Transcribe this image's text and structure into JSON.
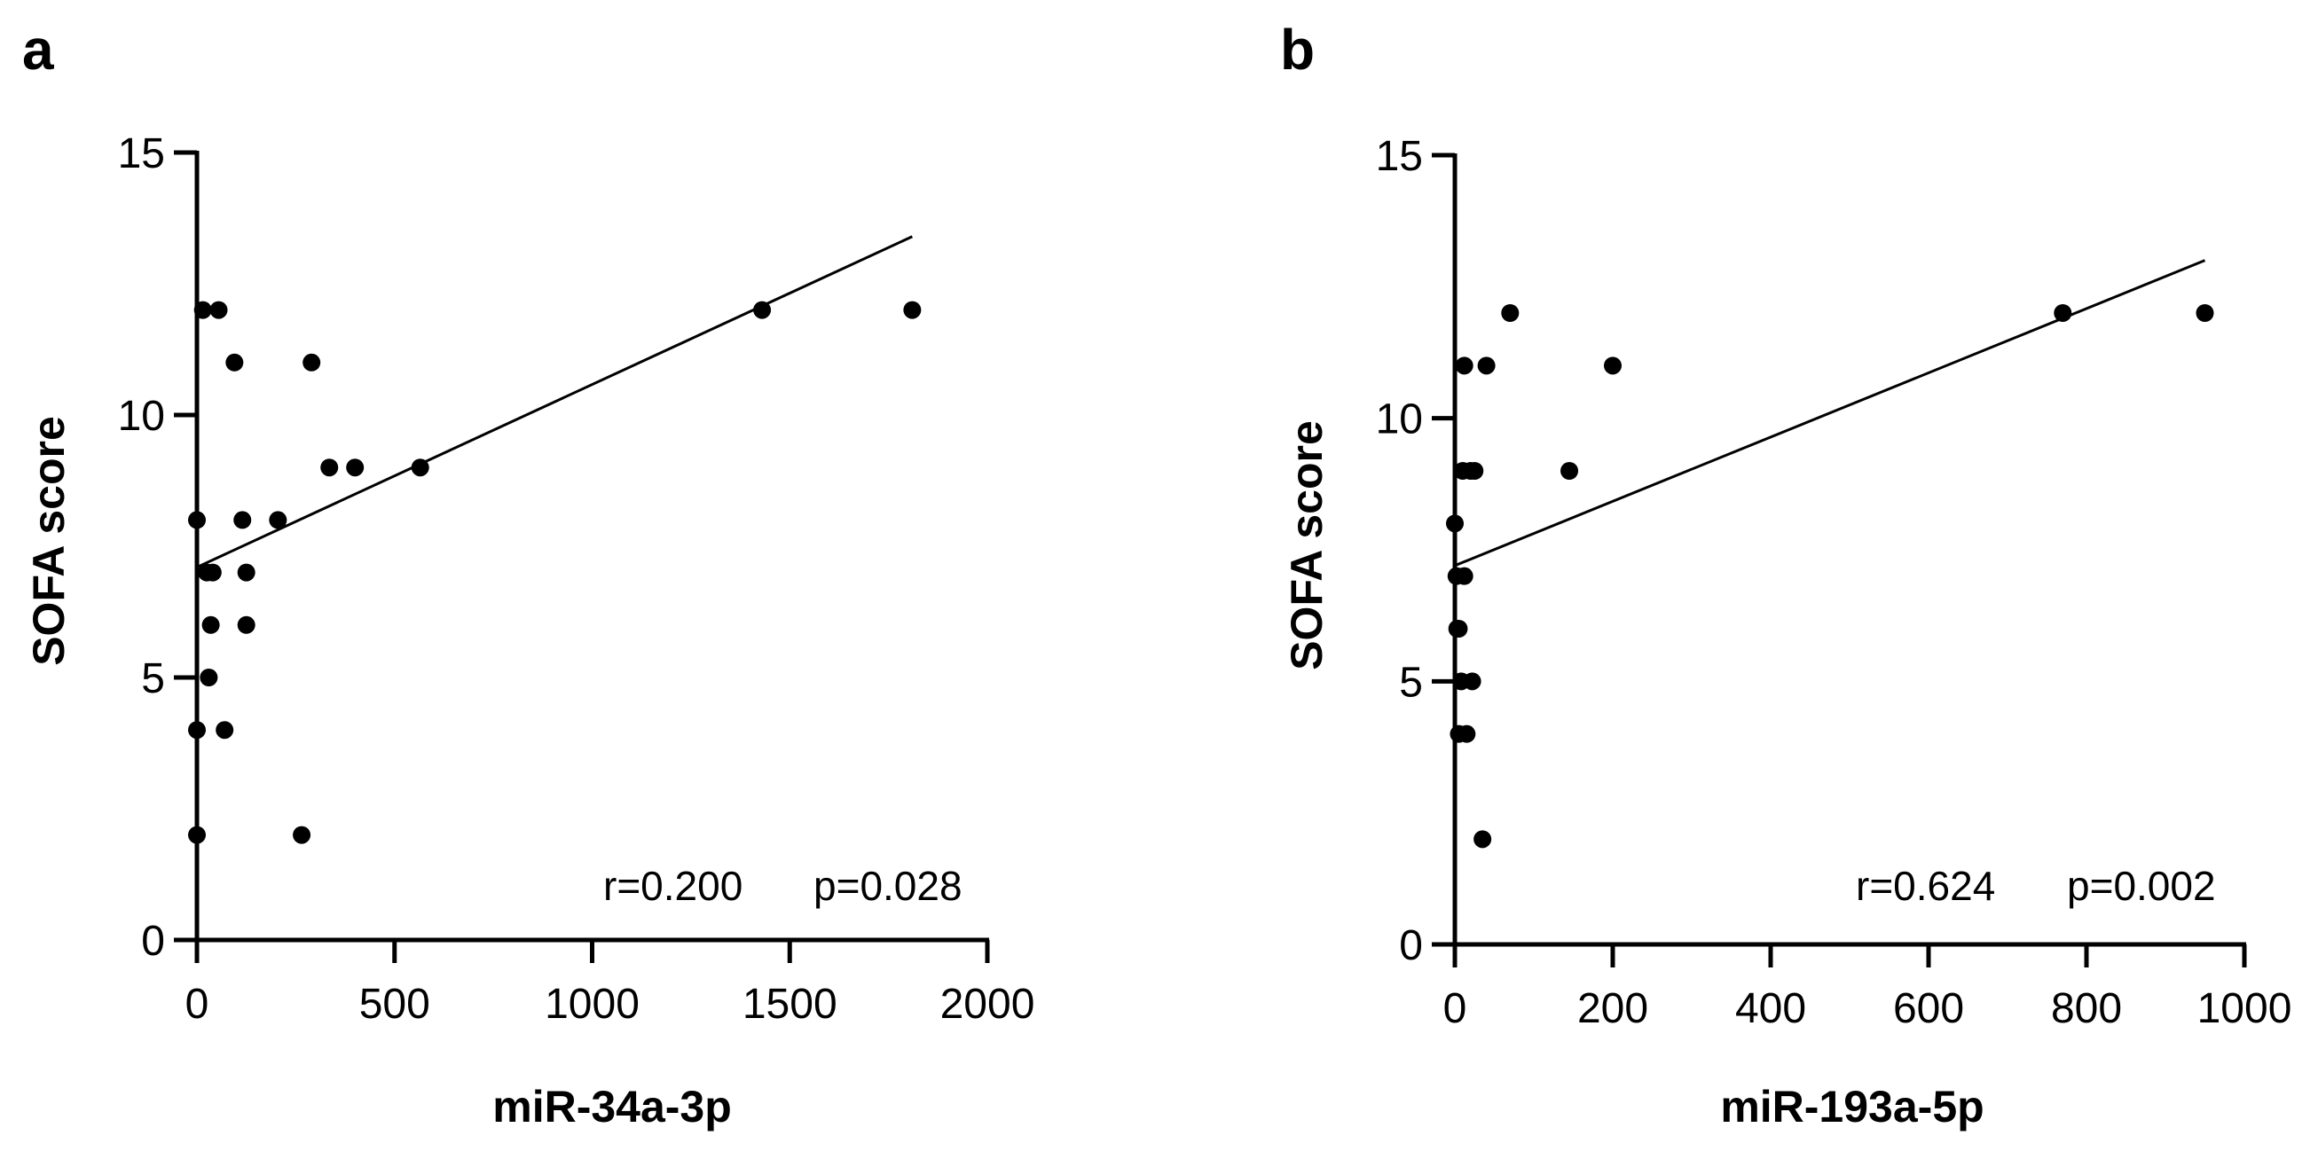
{
  "chart_data": [
    {
      "type": "scatter",
      "panel": "a",
      "title": "",
      "xlabel": "miR-34a-3p",
      "ylabel": "SOFA score",
      "xlim": [
        0,
        2000
      ],
      "ylim": [
        0,
        15
      ],
      "xticks": [
        0,
        500,
        1000,
        1500,
        2000
      ],
      "yticks": [
        0,
        5,
        10,
        15
      ],
      "xtick_labels": [
        "0",
        "500",
        "1000",
        "1500",
        "2000"
      ],
      "ytick_labels": [
        "0",
        "5",
        "10",
        "15"
      ],
      "points": [
        {
          "x": 0,
          "y": 8
        },
        {
          "x": 0,
          "y": 4
        },
        {
          "x": 0,
          "y": 2
        },
        {
          "x": 15,
          "y": 12
        },
        {
          "x": 25,
          "y": 7
        },
        {
          "x": 30,
          "y": 5
        },
        {
          "x": 35,
          "y": 6
        },
        {
          "x": 40,
          "y": 7
        },
        {
          "x": 55,
          "y": 12
        },
        {
          "x": 70,
          "y": 4
        },
        {
          "x": 95,
          "y": 11
        },
        {
          "x": 115,
          "y": 8
        },
        {
          "x": 125,
          "y": 7
        },
        {
          "x": 125,
          "y": 6
        },
        {
          "x": 205,
          "y": 8
        },
        {
          "x": 265,
          "y": 2
        },
        {
          "x": 290,
          "y": 11
        },
        {
          "x": 335,
          "y": 9
        },
        {
          "x": 400,
          "y": 9
        },
        {
          "x": 565,
          "y": 9
        },
        {
          "x": 1430,
          "y": 12
        },
        {
          "x": 1810,
          "y": 12
        }
      ],
      "fit_line": {
        "x": [
          0,
          1810
        ],
        "y": [
          7.1,
          13.4
        ]
      },
      "annotation": {
        "r": "r=0.200",
        "p": "p=0.028"
      }
    },
    {
      "type": "scatter",
      "panel": "b",
      "title": "",
      "xlabel": "miR-193a-5p",
      "ylabel": "SOFA score",
      "xlim": [
        0,
        1000
      ],
      "ylim": [
        0,
        15
      ],
      "xticks": [
        0,
        200,
        400,
        600,
        800,
        1000
      ],
      "yticks": [
        0,
        5,
        10,
        15
      ],
      "xtick_labels": [
        "0",
        "200",
        "400",
        "600",
        "800",
        "1000"
      ],
      "ytick_labels": [
        "0",
        "5",
        "10",
        "15"
      ],
      "points": [
        {
          "x": 0,
          "y": 8
        },
        {
          "x": 2,
          "y": 7
        },
        {
          "x": 3,
          "y": 6
        },
        {
          "x": 5,
          "y": 6
        },
        {
          "x": 5,
          "y": 4
        },
        {
          "x": 8,
          "y": 5
        },
        {
          "x": 10,
          "y": 9
        },
        {
          "x": 12,
          "y": 7
        },
        {
          "x": 12,
          "y": 11
        },
        {
          "x": 15,
          "y": 4
        },
        {
          "x": 20,
          "y": 9
        },
        {
          "x": 22,
          "y": 5
        },
        {
          "x": 25,
          "y": 9
        },
        {
          "x": 35,
          "y": 2
        },
        {
          "x": 40,
          "y": 11
        },
        {
          "x": 70,
          "y": 12
        },
        {
          "x": 145,
          "y": 9
        },
        {
          "x": 200,
          "y": 11
        },
        {
          "x": 770,
          "y": 12
        },
        {
          "x": 950,
          "y": 12
        }
      ],
      "fit_line": {
        "x": [
          0,
          950
        ],
        "y": [
          7.2,
          13.0
        ]
      },
      "annotation": {
        "r": "r=0.624",
        "p": "p=0.002"
      }
    }
  ]
}
